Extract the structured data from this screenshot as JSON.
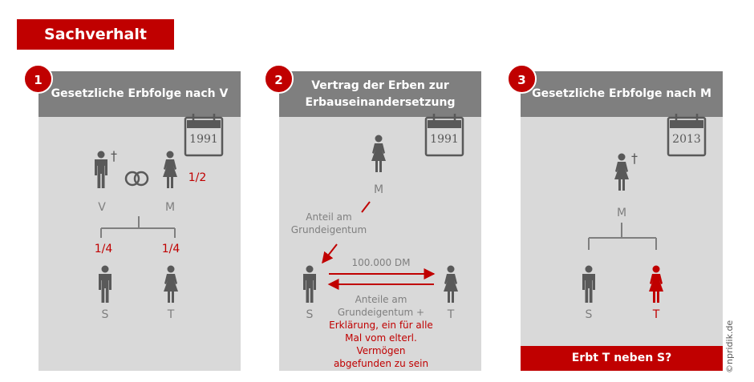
{
  "title": "Sachverhalt",
  "credit": "©npridik.de",
  "panels": [
    {
      "number": "1",
      "header": "Gesetzliche Erbfolge nach V",
      "year": "1991",
      "v_label": "V",
      "m_label": "M",
      "m_share": "1/2",
      "s_share": "1/4",
      "t_share": "1/4",
      "s_label": "S",
      "t_label": "T",
      "death_mark": "†"
    },
    {
      "number": "2",
      "header_line1": "Vertrag der Erben zur",
      "header_line2": "Erbauseinandersetzung",
      "year": "1991",
      "m_label": "M",
      "anteil_line1": "Anteil am",
      "anteil_line2": "Grundeigentum",
      "amount": "100.000 DM",
      "anteile_line1": "Anteile am",
      "anteile_line2": "Grundeigentum +",
      "erkl_line1": "Erklärung, ein für alle",
      "erkl_line2": "Mal vom elterl. Vermögen",
      "erkl_line3": "abgefunden zu sein",
      "s_label": "S",
      "t_label": "T"
    },
    {
      "number": "3",
      "header": "Gesetzliche Erbfolge nach M",
      "year": "2013",
      "m_label": "M",
      "s_label": "S",
      "t_label": "T",
      "death_mark": "†",
      "question": "Erbt T neben S?"
    }
  ],
  "colors": {
    "red": "#c00000",
    "grey_panel": "#d9d9d9",
    "grey_header": "#7f7f7f",
    "figure": "#595959"
  }
}
